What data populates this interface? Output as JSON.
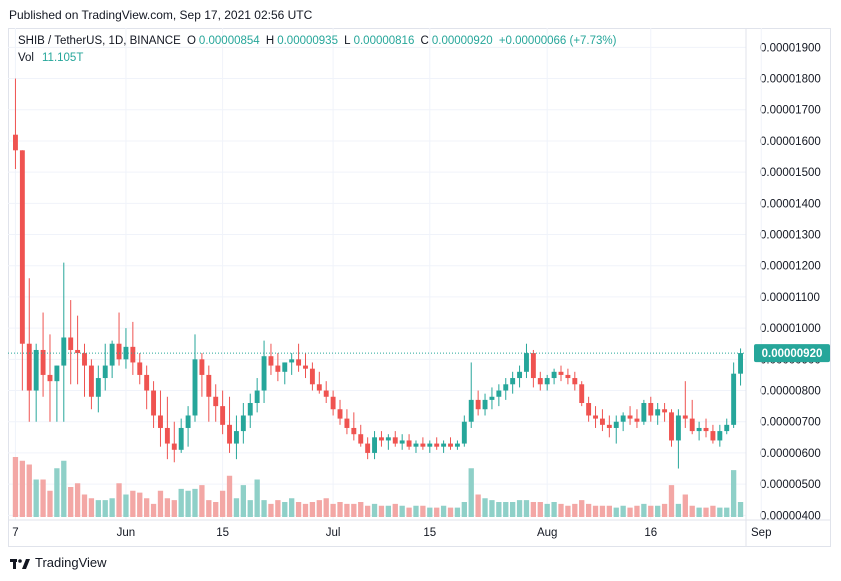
{
  "header": {
    "published": "Published on TradingView.com, Sep 17, 2021 02:56 UTC"
  },
  "legend": {
    "symbol": "SHIB / TetherUS, 1D, BINANCE",
    "open_label": "O",
    "open": "0.00000854",
    "high_label": "H",
    "high": "0.00000935",
    "low_label": "L",
    "low": "0.00000816",
    "close_label": "C",
    "close": "0.00000920",
    "change": "+0.00000066 (+7.73%)",
    "vol_label": "Vol",
    "vol": "11.105T"
  },
  "footer": {
    "brand": "TradingView"
  },
  "colors": {
    "up": "#26a69a",
    "down": "#ef5350",
    "up_vol": "#8fd0c8",
    "down_vol": "#f3a7a5",
    "grid": "#f0f3fa",
    "text": "#131722"
  },
  "chart_data": {
    "type": "candlestick",
    "y_ticks": [
      "0.00001900",
      "0.00001800",
      "0.00001700",
      "0.00001600",
      "0.00001500",
      "0.00001400",
      "0.00001300",
      "0.00001200",
      "0.00001100",
      "0.00001000",
      "0.00000900",
      "0.00000800",
      "0.00000700",
      "0.00000600",
      "0.00000500",
      "0.00000400"
    ],
    "ylim": [
      3.85e-06,
      1.962e-05
    ],
    "x_ticks": [
      {
        "label": "7",
        "index": 0
      },
      {
        "label": "Jun",
        "index": 16
      },
      {
        "label": "15",
        "index": 30
      },
      {
        "label": "Jul",
        "index": 46
      },
      {
        "label": "15",
        "index": 60
      },
      {
        "label": "Aug",
        "index": 77
      },
      {
        "label": "16",
        "index": 92
      },
      {
        "label": "Sep",
        "index": 108
      }
    ],
    "last_price_label": "0.00000920",
    "last_price": 9.2e-06,
    "ohlc": [
      [
        1.62,
        1.8,
        1.51,
        1.57
      ],
      [
        1.57,
        1.57,
        0.8,
        0.95
      ],
      [
        0.95,
        1.16,
        0.7,
        0.8
      ],
      [
        0.8,
        0.95,
        0.7,
        0.93
      ],
      [
        0.93,
        1.05,
        0.78,
        0.85
      ],
      [
        0.85,
        0.98,
        0.7,
        0.83
      ],
      [
        0.83,
        0.88,
        0.7,
        0.88
      ],
      [
        0.88,
        1.21,
        0.7,
        0.97
      ],
      [
        0.97,
        1.09,
        0.82,
        0.93
      ],
      [
        0.93,
        1.04,
        0.82,
        0.92
      ],
      [
        0.92,
        0.95,
        0.78,
        0.88
      ],
      [
        0.88,
        0.9,
        0.74,
        0.78
      ],
      [
        0.78,
        0.88,
        0.73,
        0.84
      ],
      [
        0.84,
        0.95,
        0.8,
        0.88
      ],
      [
        0.88,
        0.96,
        0.84,
        0.95
      ],
      [
        0.95,
        1.05,
        0.88,
        0.9
      ],
      [
        0.9,
        1.0,
        0.87,
        0.94
      ],
      [
        0.94,
        1.02,
        0.85,
        0.89
      ],
      [
        0.89,
        0.92,
        0.82,
        0.85
      ],
      [
        0.85,
        0.88,
        0.74,
        0.8
      ],
      [
        0.8,
        0.83,
        0.68,
        0.72
      ],
      [
        0.72,
        0.8,
        0.62,
        0.68
      ],
      [
        0.68,
        0.78,
        0.58,
        0.63
      ],
      [
        0.63,
        0.7,
        0.57,
        0.61
      ],
      [
        0.61,
        0.71,
        0.6,
        0.68
      ],
      [
        0.68,
        0.75,
        0.62,
        0.72
      ],
      [
        0.72,
        0.98,
        0.7,
        0.9
      ],
      [
        0.9,
        0.92,
        0.78,
        0.85
      ],
      [
        0.85,
        0.88,
        0.7,
        0.78
      ],
      [
        0.78,
        0.82,
        0.7,
        0.75
      ],
      [
        0.75,
        0.8,
        0.66,
        0.69
      ],
      [
        0.69,
        0.78,
        0.6,
        0.63
      ],
      [
        0.63,
        0.72,
        0.58,
        0.67
      ],
      [
        0.67,
        0.76,
        0.63,
        0.72
      ],
      [
        0.72,
        0.79,
        0.68,
        0.76
      ],
      [
        0.76,
        0.84,
        0.73,
        0.8
      ],
      [
        0.8,
        0.96,
        0.76,
        0.91
      ],
      [
        0.91,
        0.95,
        0.85,
        0.88
      ],
      [
        0.88,
        0.92,
        0.83,
        0.86
      ],
      [
        0.86,
        0.89,
        0.82,
        0.89
      ],
      [
        0.89,
        0.92,
        0.85,
        0.9
      ],
      [
        0.9,
        0.95,
        0.86,
        0.88
      ],
      [
        0.88,
        0.92,
        0.84,
        0.87
      ],
      [
        0.87,
        0.89,
        0.8,
        0.82
      ],
      [
        0.82,
        0.86,
        0.79,
        0.8
      ],
      [
        0.8,
        0.83,
        0.76,
        0.78
      ],
      [
        0.78,
        0.8,
        0.72,
        0.74
      ],
      [
        0.74,
        0.77,
        0.69,
        0.71
      ],
      [
        0.71,
        0.74,
        0.66,
        0.68
      ],
      [
        0.68,
        0.73,
        0.64,
        0.66
      ],
      [
        0.66,
        0.69,
        0.62,
        0.63
      ],
      [
        0.63,
        0.65,
        0.58,
        0.6
      ],
      [
        0.6,
        0.67,
        0.58,
        0.65
      ],
      [
        0.65,
        0.67,
        0.62,
        0.64
      ],
      [
        0.64,
        0.66,
        0.61,
        0.65
      ],
      [
        0.65,
        0.67,
        0.62,
        0.63
      ],
      [
        0.63,
        0.66,
        0.61,
        0.64
      ],
      [
        0.64,
        0.66,
        0.61,
        0.62
      ],
      [
        0.62,
        0.64,
        0.6,
        0.63
      ],
      [
        0.63,
        0.65,
        0.61,
        0.62
      ],
      [
        0.62,
        0.64,
        0.6,
        0.63
      ],
      [
        0.63,
        0.65,
        0.61,
        0.62
      ],
      [
        0.62,
        0.64,
        0.6,
        0.63
      ],
      [
        0.63,
        0.65,
        0.61,
        0.62
      ],
      [
        0.62,
        0.64,
        0.61,
        0.63
      ],
      [
        0.63,
        0.72,
        0.62,
        0.7
      ],
      [
        0.7,
        0.89,
        0.68,
        0.77
      ],
      [
        0.77,
        0.8,
        0.72,
        0.74
      ],
      [
        0.74,
        0.79,
        0.72,
        0.77
      ],
      [
        0.77,
        0.81,
        0.74,
        0.78
      ],
      [
        0.78,
        0.82,
        0.75,
        0.8
      ],
      [
        0.8,
        0.84,
        0.77,
        0.82
      ],
      [
        0.82,
        0.86,
        0.79,
        0.84
      ],
      [
        0.84,
        0.88,
        0.81,
        0.86
      ],
      [
        0.86,
        0.95,
        0.84,
        0.92
      ],
      [
        0.92,
        0.93,
        0.81,
        0.84
      ],
      [
        0.84,
        0.86,
        0.8,
        0.82
      ],
      [
        0.82,
        0.85,
        0.8,
        0.84
      ],
      [
        0.84,
        0.87,
        0.82,
        0.86
      ],
      [
        0.86,
        0.88,
        0.83,
        0.85
      ],
      [
        0.85,
        0.87,
        0.82,
        0.84
      ],
      [
        0.84,
        0.86,
        0.8,
        0.82
      ],
      [
        0.82,
        0.83,
        0.75,
        0.76
      ],
      [
        0.76,
        0.78,
        0.7,
        0.72
      ],
      [
        0.72,
        0.75,
        0.68,
        0.71
      ],
      [
        0.71,
        0.74,
        0.67,
        0.69
      ],
      [
        0.69,
        0.72,
        0.65,
        0.68
      ],
      [
        0.68,
        0.72,
        0.63,
        0.7
      ],
      [
        0.7,
        0.73,
        0.67,
        0.72
      ],
      [
        0.72,
        0.75,
        0.69,
        0.71
      ],
      [
        0.71,
        0.74,
        0.68,
        0.7
      ],
      [
        0.7,
        0.77,
        0.69,
        0.76
      ],
      [
        0.76,
        0.78,
        0.7,
        0.72
      ],
      [
        0.72,
        0.76,
        0.69,
        0.74
      ],
      [
        0.74,
        0.76,
        0.7,
        0.73
      ],
      [
        0.73,
        0.74,
        0.62,
        0.64
      ],
      [
        0.64,
        0.74,
        0.55,
        0.72
      ],
      [
        0.72,
        0.83,
        0.68,
        0.71
      ],
      [
        0.71,
        0.77,
        0.66,
        0.67
      ],
      [
        0.67,
        0.7,
        0.64,
        0.68
      ],
      [
        0.68,
        0.71,
        0.65,
        0.67
      ],
      [
        0.67,
        0.69,
        0.63,
        0.64
      ],
      [
        0.64,
        0.69,
        0.62,
        0.67
      ],
      [
        0.67,
        0.71,
        0.66,
        0.69
      ],
      [
        0.69,
        0.89,
        0.68,
        0.854
      ],
      [
        0.854,
        0.935,
        0.816,
        0.92
      ]
    ],
    "volume": [
      32,
      30,
      28,
      20,
      20,
      14,
      26,
      30,
      16,
      18,
      12,
      10,
      9,
      9,
      10,
      18,
      12,
      14,
      13,
      10,
      7,
      14,
      10,
      9,
      15,
      14,
      15,
      17,
      9,
      8,
      14,
      22,
      10,
      17,
      9,
      20,
      9,
      7,
      9,
      8,
      10,
      8,
      7,
      8,
      9,
      10,
      7,
      8,
      7,
      7,
      8,
      6,
      7,
      6,
      6,
      7,
      6,
      5,
      6,
      6,
      5,
      5,
      6,
      5,
      5,
      8,
      26,
      12,
      10,
      9,
      8,
      8,
      8,
      9,
      9,
      8,
      8,
      7,
      8,
      7,
      6,
      7,
      9,
      7,
      6,
      6,
      6,
      5,
      6,
      5,
      6,
      7,
      6,
      6,
      7,
      17,
      7,
      12,
      6,
      5,
      5,
      6,
      5,
      5,
      25,
      8
    ],
    "volume_scale_max": 40
  }
}
